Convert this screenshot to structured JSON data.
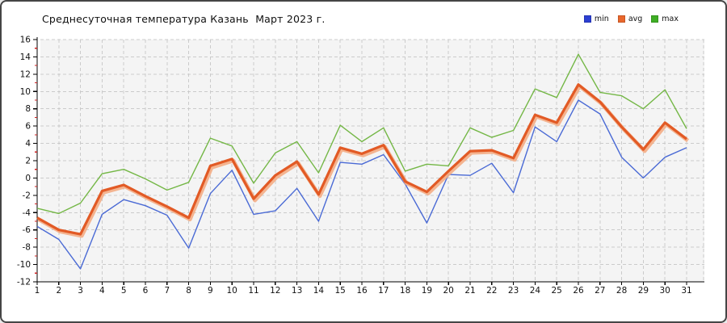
{
  "window": {
    "border_color": "#454545",
    "background": "#ffffff"
  },
  "header": {
    "title": "Среднесуточная температура Казань  Март 2023 г."
  },
  "legend": {
    "position": "top-right",
    "items": [
      {
        "label": "min",
        "color": "#2c3fd2"
      },
      {
        "label": "avg",
        "color": "#e9672c"
      },
      {
        "label": "max",
        "color": "#3fae25"
      }
    ]
  },
  "chart_data": {
    "type": "line",
    "title": "Среднесуточная температура Казань  Март 2023 г.",
    "xlabel": "",
    "ylabel": "",
    "x": [
      1,
      2,
      3,
      4,
      5,
      6,
      7,
      8,
      9,
      10,
      11,
      12,
      13,
      14,
      15,
      16,
      17,
      18,
      19,
      20,
      21,
      22,
      23,
      24,
      25,
      26,
      27,
      28,
      29,
      30,
      31
    ],
    "ylim": [
      -12,
      16
    ],
    "ytick_step": 2,
    "grid": true,
    "legend_position": "top-right",
    "series": [
      {
        "name": "min",
        "color": "#4a6ad5",
        "width": 1.4,
        "values": [
          -5.6,
          -7.1,
          -10.5,
          -4.2,
          -2.5,
          -3.2,
          -4.3,
          -8.1,
          -1.8,
          0.9,
          -4.2,
          -3.8,
          -1.2,
          -5.0,
          1.8,
          1.6,
          2.7,
          -0.7,
          -5.2,
          0.4,
          0.3,
          1.7,
          -1.7,
          5.9,
          4.2,
          9.0,
          7.4,
          2.4,
          0.0,
          2.4,
          3.5
        ]
      },
      {
        "name": "avg",
        "color": "#e25a25",
        "halo_color": "#f4ad85",
        "width": 3.2,
        "values": [
          -4.6,
          -6.0,
          -6.5,
          -1.5,
          -0.8,
          -2.1,
          -3.3,
          -4.6,
          1.4,
          2.2,
          -2.4,
          0.3,
          1.9,
          -1.9,
          3.5,
          2.8,
          3.8,
          -0.4,
          -1.6,
          0.8,
          3.1,
          3.2,
          2.3,
          7.3,
          6.4,
          10.8,
          8.8,
          5.9,
          3.3,
          6.4,
          4.5
        ]
      },
      {
        "name": "max",
        "color": "#74b746",
        "width": 1.4,
        "values": [
          -3.5,
          -4.1,
          -2.9,
          0.5,
          1.0,
          -0.1,
          -1.4,
          -0.5,
          4.6,
          3.7,
          -0.6,
          2.9,
          4.2,
          0.6,
          6.1,
          4.2,
          5.8,
          0.8,
          1.6,
          1.4,
          5.8,
          4.7,
          5.5,
          10.3,
          9.3,
          14.3,
          9.9,
          9.5,
          8.0,
          10.2,
          5.7
        ]
      }
    ],
    "style": {
      "plot_bg": "#f4f4f4",
      "grid_color": "#cbcbcb",
      "axis_color": "#000000",
      "minor_tick_color": "#cc2222",
      "tick_label_size": 10.5
    }
  }
}
